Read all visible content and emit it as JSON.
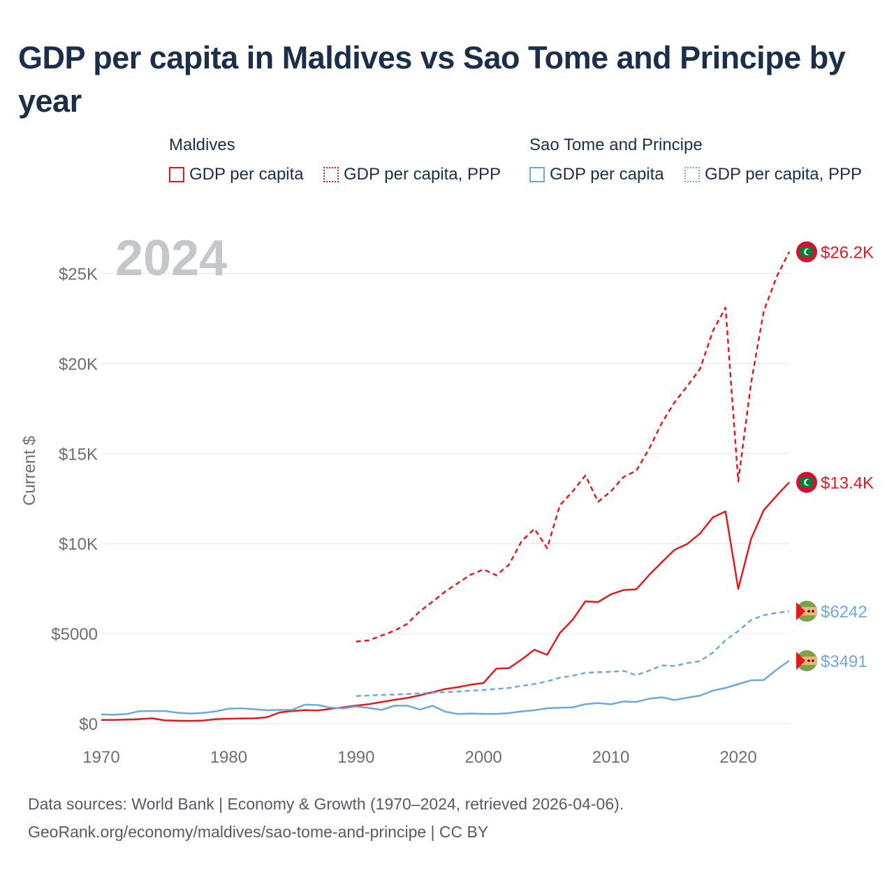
{
  "title": "GDP per capita in Maldives vs Sao Tome and Principe by year",
  "legend": {
    "groups": [
      {
        "name": "Maldives",
        "items": [
          "GDP per capita",
          "GDP per capita, PPP"
        ]
      },
      {
        "name": "Sao Tome and Principe",
        "items": [
          "GDP per capita",
          "GDP per capita, PPP"
        ]
      }
    ]
  },
  "colors": {
    "maldives": "#e31a1c",
    "sao_tome": "#6fa8dc",
    "grid": "#e6e6e6",
    "year_watermark": "#c4c7cc",
    "axis_text": "#6b6e75"
  },
  "footer": {
    "line1": "Data sources: World Bank | Economy & Growth (1970–2024, retrieved 2026-04-06).",
    "line2": "GeoRank.org/economy/maldives/sao-tome-and-principe | CC BY"
  },
  "chart_data": {
    "type": "line",
    "title": "GDP per capita in Maldives vs Sao Tome and Principe by year",
    "year_label": "2024",
    "xlabel": "",
    "ylabel": "Current $",
    "xlim": [
      1970,
      2024
    ],
    "ylim": [
      0,
      27000
    ],
    "x_ticks": [
      1970,
      1980,
      1990,
      2000,
      2010,
      2020
    ],
    "x_tick_labels": [
      "1970",
      "1980",
      "1990",
      "2000",
      "2010",
      "2020"
    ],
    "y_ticks": [
      0,
      5000,
      10000,
      15000,
      20000,
      25000
    ],
    "y_tick_labels": [
      "$0",
      "$5000",
      "$10K",
      "$15K",
      "$20K",
      "$25K"
    ],
    "grid": true,
    "series": [
      {
        "name": "Maldives GDP per capita",
        "country": "Maldives",
        "style": "solid",
        "color": "#e31a1c",
        "end_label": "$13.4K",
        "flag": "maldives-flag",
        "x_start": 1970,
        "values": [
          200,
          200,
          220,
          250,
          290,
          180,
          160,
          150,
          170,
          250,
          270,
          280,
          290,
          350,
          620,
          700,
          750,
          730,
          820,
          900,
          1000,
          1080,
          1200,
          1320,
          1420,
          1570,
          1740,
          1920,
          2020,
          2160,
          2250,
          3050,
          3080,
          3560,
          4100,
          3820,
          5040,
          5770,
          6790,
          6750,
          7180,
          7420,
          7460,
          8250,
          8960,
          9650,
          9980,
          10560,
          11450,
          11780,
          7480,
          10250,
          11850,
          12650,
          13400
        ]
      },
      {
        "name": "Maldives GDP per capita, PPP",
        "country": "Maldives",
        "style": "dashed",
        "color": "#e31a1c",
        "end_label": "$26.2K",
        "flag": "maldives-flag",
        "x_start": 1990,
        "values": [
          4560,
          4620,
          4890,
          5150,
          5530,
          6230,
          6770,
          7330,
          7810,
          8270,
          8560,
          8240,
          8820,
          10140,
          10820,
          9740,
          12130,
          12900,
          13780,
          12320,
          12900,
          13700,
          14050,
          15260,
          16700,
          17850,
          18750,
          19700,
          21800,
          23100,
          13450,
          18900,
          22900,
          24800,
          26200
        ]
      },
      {
        "name": "Sao Tome and Principe GDP per capita",
        "country": "Sao Tome and Principe",
        "style": "solid",
        "color": "#6fa8dc",
        "end_label": "$3491",
        "flag": "sao-tome-flag",
        "x_start": 1970,
        "values": [
          510,
          490,
          530,
          690,
          700,
          700,
          600,
          560,
          590,
          680,
          830,
          840,
          800,
          740,
          760,
          770,
          1050,
          1030,
          890,
          840,
          950,
          870,
          760,
          990,
          1000,
          780,
          990,
          660,
          530,
          560,
          540,
          540,
          580,
          680,
          740,
          850,
          880,
          900,
          1080,
          1140,
          1070,
          1230,
          1200,
          1380,
          1460,
          1310,
          1440,
          1550,
          1830,
          1980,
          2190,
          2400,
          2420,
          2990,
          3491
        ]
      },
      {
        "name": "Sao Tome and Principe GDP per capita, PPP",
        "country": "Sao Tome and Principe",
        "style": "dashed",
        "color": "#6fa8dc",
        "end_label": "$6242",
        "flag": "sao-tome-flag",
        "x_start": 1990,
        "values": [
          1530,
          1560,
          1590,
          1610,
          1640,
          1680,
          1720,
          1740,
          1780,
          1830,
          1870,
          1920,
          1980,
          2100,
          2200,
          2340,
          2550,
          2660,
          2820,
          2850,
          2880,
          2930,
          2690,
          2940,
          3230,
          3200,
          3360,
          3470,
          3940,
          4630,
          5140,
          5750,
          6020,
          6150,
          6242
        ]
      }
    ]
  }
}
